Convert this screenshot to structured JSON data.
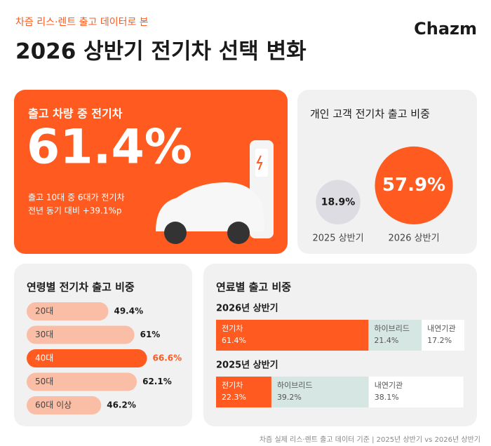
{
  "header": {
    "subtitle": "차즘 리스·렌트 출고 데이터로 본",
    "title": "2026 상반기 전기차 선택 변화",
    "logo": "Chazm"
  },
  "hero": {
    "title": "출고 차량 중 전기차",
    "value": "61.4%",
    "notes": [
      "출고 10대 중 6대가 전기차",
      "전년 동기 대비 +39.1%p"
    ]
  },
  "footer": "차즘 실제 리스·렌트 출고 데이터 기준 | 2025년 상반기 vs 2026년 상반기",
  "chart_data": [
    {
      "type": "bubble",
      "title": "개인 고객 전기차 출고 비중",
      "categories": [
        "2025 상반기",
        "2026 상반기"
      ],
      "values": [
        18.9,
        57.9
      ],
      "value_labels": [
        "18.9%",
        "57.9%"
      ],
      "colors": [
        "#dcdce2",
        "#ff5a1f"
      ]
    },
    {
      "type": "bar",
      "title": "연령별 전기차 출고 비중",
      "categories": [
        "20대",
        "30대",
        "40대",
        "50대",
        "60대 이상"
      ],
      "values": [
        49.4,
        61,
        66.6,
        62.1,
        46.2
      ],
      "value_labels": [
        "49.4%",
        "61%",
        "66.6%",
        "62.1%",
        "46.2%"
      ],
      "colors": [
        "#f9bea5",
        "#f9bea5",
        "#ff5a1f",
        "#f9bea5",
        "#f9bea5"
      ]
    },
    {
      "type": "stacked_bar",
      "title": "연료별 출고 비중",
      "categories": [
        "2026년 상반기",
        "2025년 상반기"
      ],
      "series": [
        {
          "name": "전기차",
          "color": "#ff5a1f",
          "values": [
            61.4,
            22.3
          ],
          "value_labels": [
            "61.4%",
            "22.3%"
          ]
        },
        {
          "name": "하이브리드",
          "color": "#d6e7e3",
          "values": [
            21.4,
            39.2
          ],
          "value_labels": [
            "21.4%",
            "39.2%"
          ]
        },
        {
          "name": "내연기관",
          "color": "#ffffff",
          "values": [
            17.2,
            38.1
          ],
          "value_labels": [
            "17.2%",
            "38.1%"
          ]
        }
      ]
    }
  ]
}
